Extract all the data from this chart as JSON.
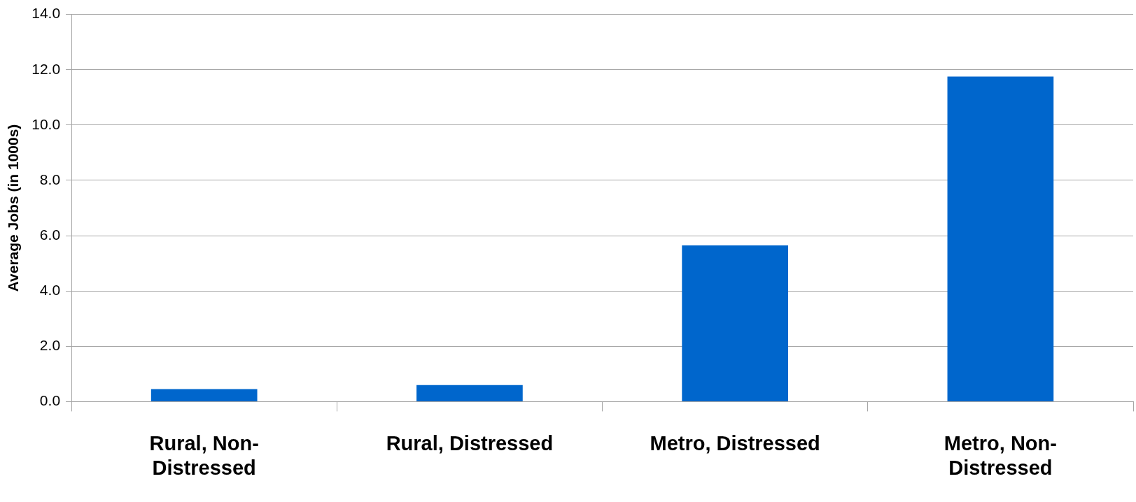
{
  "chart_data": {
    "type": "bar",
    "ylabel": "Average Jobs (in 1000s)",
    "categories": [
      "Rural, Non-Distressed",
      "Rural, Distressed",
      "Metro, Distressed",
      "Metro, Non-Distressed"
    ],
    "values": [
      0.45,
      0.6,
      5.65,
      11.75
    ],
    "color": "#0066cc",
    "ylim": [
      0,
      14
    ],
    "yticks": [
      {
        "value": 0,
        "label": "0.0"
      },
      {
        "value": 2,
        "label": "2.0"
      },
      {
        "value": 4,
        "label": "4.0"
      },
      {
        "value": 6,
        "label": "6.0"
      },
      {
        "value": 8,
        "label": "8.0"
      },
      {
        "value": 10,
        "label": "10.0"
      },
      {
        "value": 12,
        "label": "12.0"
      },
      {
        "value": 14,
        "label": "14.0"
      }
    ],
    "grid": "y",
    "legend": false
  }
}
